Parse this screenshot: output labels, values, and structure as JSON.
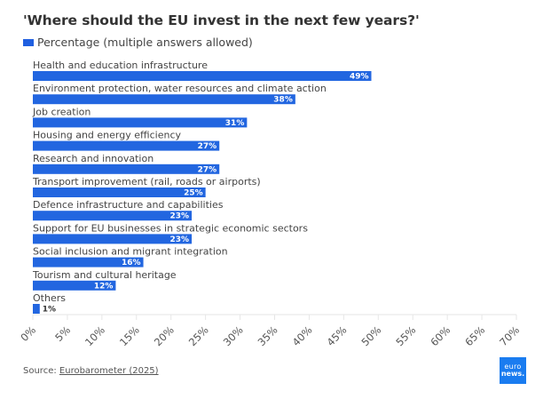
{
  "chart_data": {
    "type": "bar",
    "orientation": "horizontal",
    "title": "'Where should the EU invest in the next few years?'",
    "legend": [
      "Percentage (multiple answers allowed)"
    ],
    "legend_position": "top-left",
    "categories": [
      "Health and education infrastructure",
      "Environment protection, water resources and climate action",
      "Job creation",
      "Housing and energy efficiency",
      "Research and innovation",
      "Transport improvement (rail, roads or airports)",
      "Defence infrastructure and capabilities",
      "Support for EU businesses in strategic economic sectors",
      "Social inclusion and migrant integration",
      "Tourism and cultural heritage",
      "Others"
    ],
    "series": [
      {
        "name": "Percentage (multiple answers allowed)",
        "values": [
          49,
          38,
          31,
          27,
          27,
          25,
          23,
          23,
          16,
          12,
          1
        ]
      }
    ],
    "data_labels": [
      "49%",
      "38%",
      "31%",
      "27%",
      "27%",
      "25%",
      "23%",
      "23%",
      "16%",
      "12%",
      "1%"
    ],
    "xlabel": "",
    "ylabel": "",
    "xlim": [
      0,
      70
    ],
    "x_ticks": [
      0,
      5,
      10,
      15,
      20,
      25,
      30,
      35,
      40,
      45,
      50,
      55,
      60,
      65,
      70
    ],
    "x_tick_labels": [
      "0%",
      "5%",
      "10%",
      "15%",
      "20%",
      "25%",
      "30%",
      "35%",
      "40%",
      "45%",
      "50%",
      "55%",
      "60%",
      "65%",
      "70%"
    ],
    "grid": false
  },
  "colors": {
    "bar": "#2266e0",
    "title": "#333333",
    "label_inside": "#ffffff",
    "label_outside": "#333333",
    "logo_bg": "#1a7cf0"
  },
  "footer": {
    "source_prefix": "Source: ",
    "source_link": "Eurobarometer (2025)"
  },
  "logo": {
    "line1": "euro",
    "line2": "news."
  }
}
